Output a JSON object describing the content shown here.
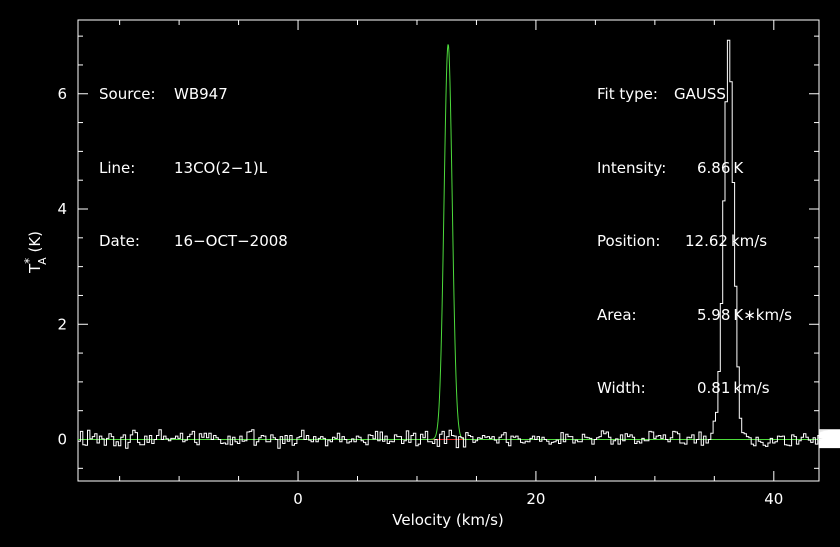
{
  "chart_data": {
    "type": "line",
    "xlabel": "Velocity (km/s)",
    "ylabel_main": "T",
    "ylabel_sup": "*",
    "ylabel_sub": "A",
    "ylabel_unit": "(K)",
    "xlim": [
      -18.5,
      43.8
    ],
    "ylim": [
      -0.72,
      7.28
    ],
    "xticks_major": [
      0,
      20,
      40
    ],
    "xtick_labels": [
      "0",
      "20",
      "40"
    ],
    "yticks_major": [
      0,
      2,
      4,
      6
    ],
    "ytick_labels": [
      "0",
      "2",
      "4",
      "6"
    ],
    "xticks_minor_step": 5,
    "yticks_minor_step": 0.5,
    "fit": {
      "type": "GAUSS",
      "amplitude": 6.86,
      "center": 12.62,
      "fwhm": 0.81,
      "area": 5.98
    },
    "spectrum": {
      "x_start": -18.5,
      "channel_width": 0.2,
      "values": [
        -0.03,
        0.14,
        -0.09,
        -0.1,
        0.16,
        0.01,
        0.05,
        0.1,
        -0.06,
        0.06,
        0.01,
        -0.1,
        0.02,
        0.1,
        0.05,
        -0.11,
        -0.04,
        -0.11,
        0.04,
        0.08,
        -0.15,
        -0.05,
        0.08,
        0.16,
        0.12,
        -0.05,
        -0.09,
        -0.09,
        0.06,
        -0.05,
        0.07,
        -0.07,
        0.0,
        0.07,
        0.17,
        -0.0,
        0.06,
        0.01,
        -0.02,
        0.02,
        0.02,
        0.06,
        0.02,
        0.11,
        -0.04,
        -0.01,
        0.05,
        0.09,
        0.14,
        -0.05,
        -0.09,
        0.1,
        0.04,
        0.11,
        0.03,
        0.11,
        -0.0,
        0.07,
        0.03,
        -0.0,
        -0.07,
        -0.06,
        -0.08,
        0.06,
        -0.09,
        0.04,
        -0.04,
        -0.07,
        0.06,
        -0.03,
        -0.02,
        0.13,
        0.14,
        0.17,
        -0.1,
        -0.04,
        0.03,
        0.07,
        0.06,
        -0.04,
        -0.04,
        0.08,
        0.03,
        -0.0,
        -0.15,
        0.05,
        -0.07,
        0.07,
        -0.03,
        0.07,
        -0.1,
        -0.07,
        0.03,
        0.05,
        0.16,
        0.0,
        0.07,
        -0.01,
        -0.04,
        0.05,
        -0.04,
        0.02,
        0.05,
        0.02,
        -0.11,
        -0.01,
        -0.04,
        0.04,
        0.02,
        0.11,
        -0.04,
        0.05,
        0.0,
        -0.06,
        -0.04,
        0.01,
        -0.04,
        0.06,
        0.04,
        -0.02,
        -0.05,
        -0.09,
        0.08,
        0.07,
        0.01,
        0.14,
        -0.02,
        0.13,
        -0.03,
        0.06,
        -0.07,
        -0.03,
        -0.04,
        0.08,
        0.05,
        0.05,
        -0.07,
        -0.02,
        0.15,
        -0.05,
        0.07,
        0.11,
        -0.11,
        -0.08,
        0.09,
        0.03,
        0.14,
        -0.04,
        -0.04,
        -0.07,
        -0.0,
        -0.12,
        0.09,
        0.14,
        -0.07,
        0.05,
        0.16,
        0.07,
        0.06,
        -0.14,
        0.05,
        0.03,
        -0.13,
        0.12,
        0.07,
        0.05,
        -0.05,
        -0.02,
        0.03,
        0.02,
        0.07,
        0.04,
        0.05,
        0.02,
        0.05,
        -0.01,
        -0.06,
        0.04,
        0.08,
        0.12,
        -0.05,
        -0.11,
        0.06,
        0.04,
        0.06,
        0.01,
        -0.05,
        -0.06,
        -0.03,
        -0.04,
        0.02,
        0.06,
        0.0,
        0.05,
        -0.03,
        0.04,
        -0.0,
        -0.03,
        -0.08,
        -0.05,
        -0.04,
        -0.01,
        -0.07,
        0.12,
        -0.04,
        0.09,
        0.05,
        0.05,
        -0.06,
        -0.01,
        -0.04,
        -0.04,
        0.09,
        0.04,
        0.03,
        0.02,
        -0.08,
        0.0,
        0.03,
        0.05,
        0.15,
        0.1,
        0.13,
        0.04,
        -0.08,
        -0.02,
        0.01,
        -0.08,
        0.08,
        -0.02,
        0.1,
        0.05,
        0.08,
        0.04,
        -0.07,
        -0.03,
        -0.06,
        0.02,
        -0.02,
        -0.02,
        0.14,
        0.13,
        0.02,
        0.06,
        0.07,
        0.02,
        0.08,
        0.0,
        -0.04,
        0.03,
        0.14,
        0.13,
        0.1,
        -0.06,
        -0.06,
        -0.08,
        0.04,
        0.03,
        0.08,
        -0.06,
        -0.0,
        0.13,
        -0.1,
        0.06,
        -0.06,
        -0.0,
        0.11,
        0.32,
        0.47,
        1.18,
        2.36,
        4.14,
        5.86,
        6.93,
        6.21,
        4.46,
        2.66,
        1.26,
        0.37,
        0.12,
        0.1,
        0.05,
        0.03,
        -0.08,
        -0.11,
        0.04,
        -0.03,
        -0.05,
        -0.1,
        -0.12,
        -0.06,
        0.02,
        -0.06,
        -0.04,
        0.06,
        0.05,
        0.06,
        -0.09,
        -0.1,
        -0.11,
        0.08,
        0.05,
        -0.08,
        -0.02,
        0.04,
        0.1,
        0.04,
        -0.01,
        -0.05,
        0.03,
        -0.08,
        0.07,
        0.04,
        -0.03,
        -0.05,
        0.01,
        0.02,
        0.08,
        -0.04,
        0.05,
        -0.05,
        -0.03,
        0.06,
        -0.14,
        0.04,
        -0.06,
        0.0,
        -0.05,
        0.1,
        0.03,
        -0.05,
        -0.08,
        0.06,
        0.09,
        -0.02,
        0.05,
        0.04,
        0.1,
        0.12,
        -0.03,
        0.08,
        0.04,
        -0.08,
        0.02,
        -0.02,
        -0.03,
        0.05,
        0.07,
        -0.08,
        0.12,
        -0.04,
        0.03,
        -0.02,
        0.01,
        0.08,
        -0.07,
        -0.12,
        0.05,
        0.08,
        0.13,
        -0.01,
        -0.03,
        -0.02,
        0.04,
        -0.03,
        0.01,
        0.02,
        0.06,
        -0.02,
        0.04,
        0.1,
        0.03,
        0.06,
        0.06,
        0.05,
        -0.03,
        -0.13,
        0.13,
        0.1,
        0.0,
        0.12,
        -0.02,
        -0.02,
        0.08,
        -0.04,
        0.07,
        -0.09,
        -0.13,
        -0.06,
        0.03,
        -0.05,
        -0.07,
        0.07,
        -0.03,
        -0.04,
        -0.02,
        0.07,
        -0.05,
        0.05,
        -0.05,
        0.02,
        0.05,
        0.06,
        -0.07,
        0.06,
        0.1,
        0.08,
        -0.01,
        0.07,
        -0.01,
        0.01,
        -0.05,
        0.03,
        -0.1,
        -0.1,
        0.07,
        0.04,
        0.03,
        -0.04,
        0.01,
        0.12,
        -0.02,
        -0.08,
        -0.02,
        0.04,
        -0.02,
        0.07,
        -0.07,
        0.07,
        -0.06,
        -0.12,
        0.06,
        0.04,
        0.03,
        0.06,
        -0.01,
        0.06,
        0.03,
        -0.12,
        -0.06,
        -0.04,
        0.01,
        0.05,
        -0.03,
        -0.02,
        -0.05,
        -0.06,
        0.04,
        0.11,
        -0.08,
        -0.06,
        -0.07,
        -0.11,
        0.12,
        0.08,
        -0.04,
        -0.01,
        0.06,
        -0.05,
        -0.03,
        0.09,
        -0.0,
        0.02,
        0.03,
        0.06,
        0.0,
        0.09,
        0.03,
        0.04,
        0.08,
        -0.04,
        -0.01,
        0.13,
        -0.05,
        -0.02,
        0.03,
        -0.01,
        0.07,
        0.01,
        -0.09,
        -0.02,
        -0.05,
        -0.04,
        0.01,
        0.04,
        0.06,
        0.12,
        0.09,
        -0.05,
        -0.1,
        -0.06,
        -0.09,
        0.13,
        -0.07,
        0.14,
        0.05,
        -0.05,
        0.07,
        -0.01,
        -0.06,
        -0.03,
        -0.02,
        0.04,
        0.04,
        0.06,
        0.03,
        -0.06,
        0.12,
        0.17,
        0.03,
        -0.08,
        0.04,
        0.06,
        -0.08,
        0.05,
        0.03,
        0.08,
        -0.07,
        0.03,
        0.01,
        0.11,
        -0.01,
        0.04,
        0.05,
        -0.07,
        -0.01,
        -0.05,
        0.11,
        -0.09,
        0.02,
        -0.03,
        0.1,
        -0.03,
        -0.06,
        -0.04,
        -0.12,
        0.05,
        0.01,
        0.09,
        -0.1,
        0.03,
        0.03,
        0.06,
        0.07,
        0.12,
        -0.07,
        0.07,
        0.15,
        -0.06,
        0.04,
        -0.06,
        -0.03,
        0.06,
        -0.02,
        0.02,
        -0.06,
        -0.08,
        0.06,
        0.05,
        0.06,
        -0.01,
        -0.03,
        -0.03,
        -0.04,
        -0.08,
        -0.04,
        -0.05,
        0.03,
        -0.04,
        0.04,
        0.1,
        0.02,
        0.12,
        0.05,
        -0.01,
        0.07,
        0.0,
        0.03,
        0.08,
        0.01,
        0.07,
        -0.03,
        0.02,
        0.09,
        -0.05,
        0.02,
        -0.12,
        -0.06,
        0.12,
        -0.09,
        0.02,
        -0.02,
        -0.07,
        -0.03,
        -0.05,
        0.05,
        -0.1,
        0.02,
        -0.04,
        -0.06,
        0.12,
        0.02,
        -0.08,
        -0.03,
        -0.01,
        0.09,
        0.13,
        0.09,
        0.01,
        -0.07,
        -0.04,
        0.02,
        0.03,
        -0.0,
        0.03,
        -0.04,
        -0.07,
        -0.02,
        0.04,
        -0.06,
        -0.02,
        0.03,
        -0.03,
        0.05,
        0.0,
        -0.04,
        -0.06,
        -0.03,
        -0.09,
        -0.05,
        0.09,
        0.07,
        -0.05,
        0.01,
        0.06,
        -0.07,
        0.05,
        -0.02
      ]
    },
    "colors": {
      "background": "#000000",
      "frame": "#ffffff",
      "spectrum": "#ffffff",
      "fit": "#4ddb3c",
      "baseline": "#e0201c",
      "text": "#ffffff"
    }
  },
  "info_left": {
    "rows": [
      {
        "label": "Source:",
        "value": "WB947"
      },
      {
        "label": "Line:",
        "value": "13CO(2−1)L"
      },
      {
        "label": "Date:",
        "value": "16−OCT−2008"
      }
    ]
  },
  "info_right": {
    "rows": [
      {
        "label": "Fit type:",
        "value": "GAUSS"
      },
      {
        "label": "Intensity:",
        "value": "6.86 K"
      },
      {
        "label": "Position:",
        "value": "12.62 km/s"
      },
      {
        "label": "Area:",
        "value": "5.98 K∗km/s"
      },
      {
        "label": "Width:",
        "value": "0.81 km/s"
      }
    ]
  }
}
